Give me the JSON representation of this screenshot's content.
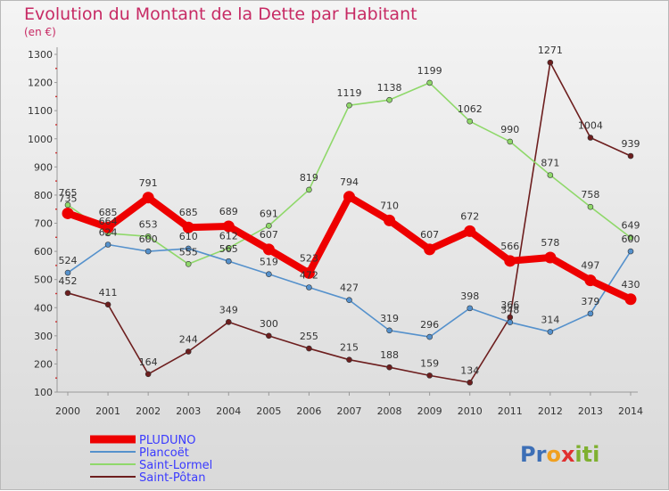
{
  "title": "Evolution du Montant de la Dette par Habitant",
  "subtitle": "(en €)",
  "logo": {
    "parts": [
      "Pr",
      "o",
      "x",
      "iti"
    ],
    "colors": [
      "#3d6fb6",
      "#f0a020",
      "#e03030",
      "#7fb030"
    ]
  },
  "chart_data": {
    "type": "line",
    "title": "Evolution du Montant de la Dette par Habitant",
    "ylabel": "(en €)",
    "xlabel": "",
    "ylim": [
      100,
      1300
    ],
    "yticks": [
      100,
      200,
      300,
      400,
      500,
      600,
      700,
      800,
      900,
      1000,
      1100,
      1200,
      1300
    ],
    "x": [
      "2000",
      "2001",
      "2002",
      "2003",
      "2004",
      "2005",
      "2006",
      "2007",
      "2008",
      "2009",
      "2010",
      "2011",
      "2012",
      "2013",
      "2014"
    ],
    "grid": false,
    "legend_position": "bottom-left",
    "series": [
      {
        "name": "Saint-Pôtan",
        "color": "#6d1e1e",
        "emphasis": false,
        "values": [
          452,
          411,
          164,
          244,
          349,
          300,
          255,
          215,
          188,
          159,
          134,
          366,
          1271,
          1004,
          939
        ]
      },
      {
        "name": "Saint-Lormel",
        "color": "#8fd86a",
        "emphasis": false,
        "values": [
          765,
          664,
          653,
          555,
          612,
          691,
          819,
          1119,
          1138,
          1199,
          1062,
          990,
          871,
          758,
          649
        ]
      },
      {
        "name": "Plancoët",
        "color": "#5591cc",
        "emphasis": false,
        "values": [
          524,
          624,
          600,
          610,
          565,
          519,
          472,
          427,
          319,
          296,
          398,
          348,
          314,
          379,
          600
        ]
      },
      {
        "name": "PLUDUNO",
        "color": "#ee0000",
        "emphasis": true,
        "values": [
          735,
          685,
          791,
          685,
          689,
          607,
          523,
          794,
          710,
          607,
          672,
          566,
          578,
          497,
          430
        ]
      }
    ],
    "legend_order": [
      "PLUDUNO",
      "Plancoët",
      "Saint-Lormel",
      "Saint-Pôtan"
    ],
    "legend_text_color": "#3a3aff"
  }
}
